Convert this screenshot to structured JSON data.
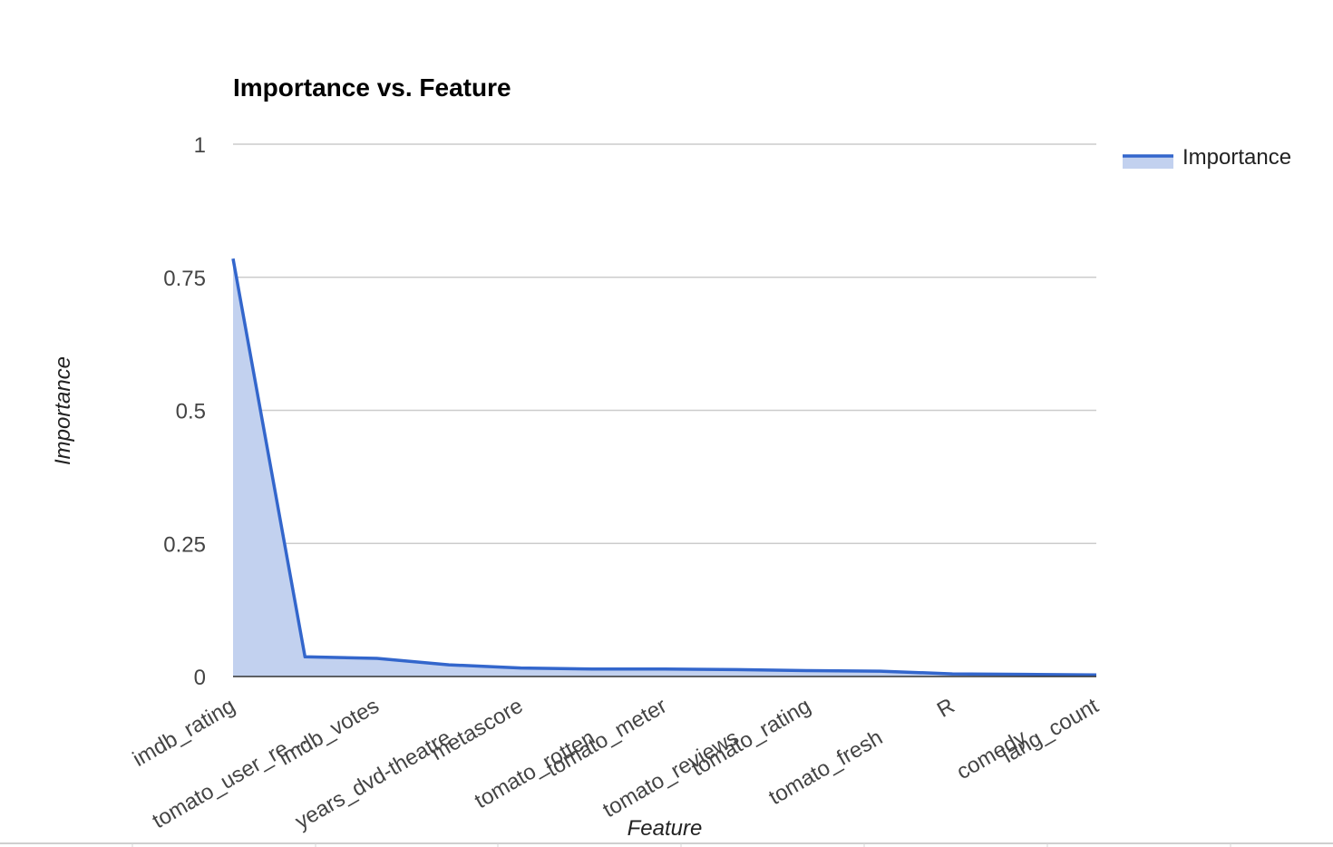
{
  "chart_data": {
    "type": "area",
    "title": "Importance vs. Feature",
    "xlabel": "Feature",
    "ylabel": "Importance",
    "categories": [
      "imdb_rating",
      "tomato_user_re…",
      "imdb_votes",
      "years_dvd-theatre",
      "metascore",
      "tomato_rotten",
      "tomato_meter",
      "tomato_reviews",
      "tomato_rating",
      "tomato_fresh",
      "R",
      "comedy",
      "lang_count"
    ],
    "series": [
      {
        "name": "Importance",
        "values": [
          0.785,
          0.037,
          0.034,
          0.022,
          0.016,
          0.014,
          0.014,
          0.013,
          0.011,
          0.01,
          0.005,
          0.004,
          0.003
        ]
      }
    ],
    "ylim": [
      0,
      1
    ],
    "yticks": [
      "0",
      "0.25",
      "0.5",
      "0.75",
      "1"
    ],
    "ytick_values": [
      0,
      0.25,
      0.5,
      0.75,
      1
    ],
    "grid": true,
    "legend_position": "right",
    "colors": {
      "line": "#3366cc",
      "fill": "#c2d1ef"
    }
  }
}
